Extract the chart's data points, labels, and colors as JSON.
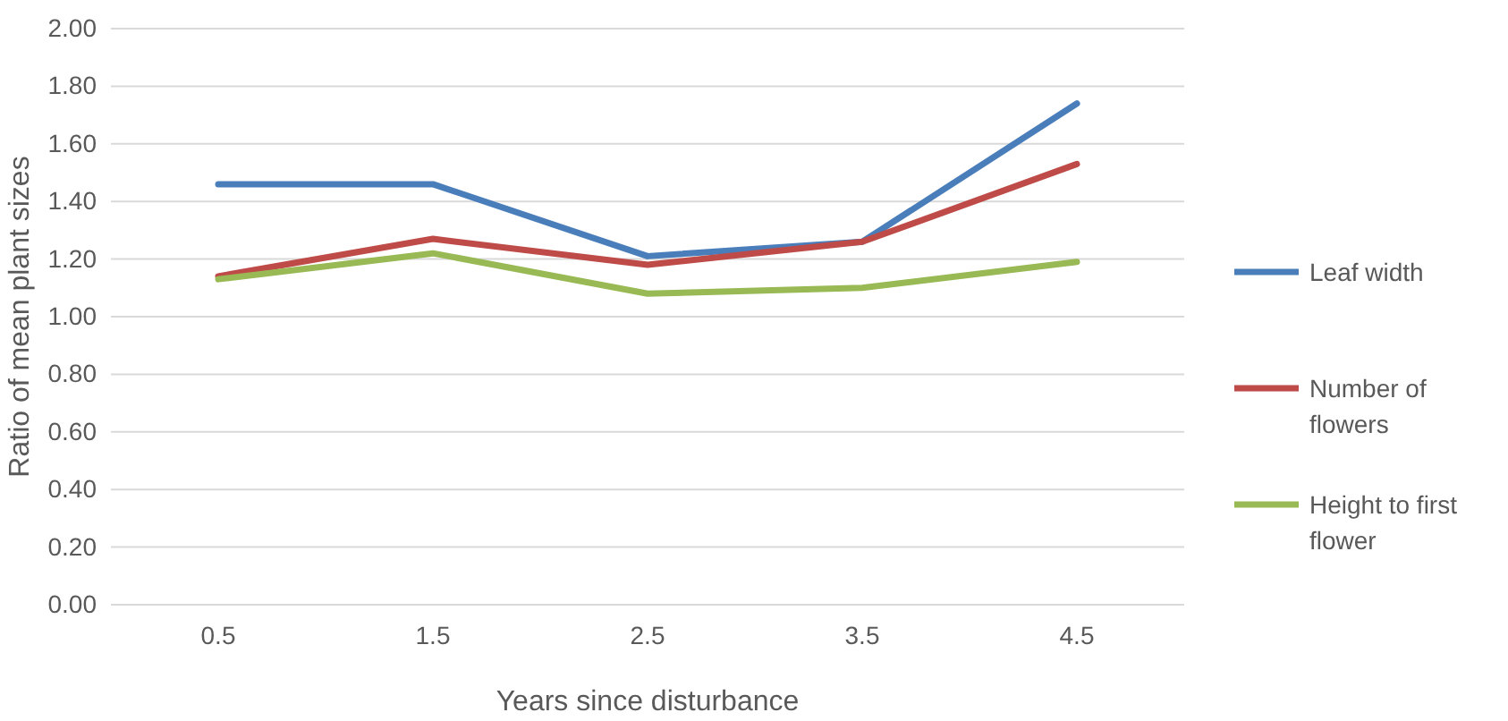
{
  "chart_data": {
    "type": "line",
    "xlabel": "Years since disturbance",
    "ylabel": "Ratio of mean plant sizes",
    "categories": [
      "0.5",
      "1.5",
      "2.5",
      "3.5",
      "4.5"
    ],
    "series": [
      {
        "name": "Leaf width",
        "color": "#4a7ebb",
        "values": [
          1.46,
          1.46,
          1.21,
          1.26,
          1.74
        ]
      },
      {
        "name": "Number of flowers",
        "color": "#be4b48",
        "values": [
          1.14,
          1.27,
          1.18,
          1.26,
          1.53
        ]
      },
      {
        "name": "Height to first flower",
        "color": "#98b954",
        "values": [
          1.13,
          1.22,
          1.08,
          1.1,
          1.19
        ]
      }
    ],
    "ylim": [
      0,
      2
    ],
    "yticks": [
      {
        "value": 0,
        "label": "0.00"
      },
      {
        "value": 0.2,
        "label": "0.20"
      },
      {
        "value": 0.4,
        "label": "0.40"
      },
      {
        "value": 0.6,
        "label": "0.60"
      },
      {
        "value": 0.8,
        "label": "0.80"
      },
      {
        "value": 1,
        "label": "1.00"
      },
      {
        "value": 1.2,
        "label": "1.20"
      },
      {
        "value": 1.4,
        "label": "1.40"
      },
      {
        "value": 1.6,
        "label": "1.60"
      },
      {
        "value": 1.8,
        "label": "1.80"
      },
      {
        "value": 2,
        "label": "2.00"
      }
    ],
    "grid": "y",
    "legend": "right",
    "marker": "none",
    "line_style": "solid"
  }
}
